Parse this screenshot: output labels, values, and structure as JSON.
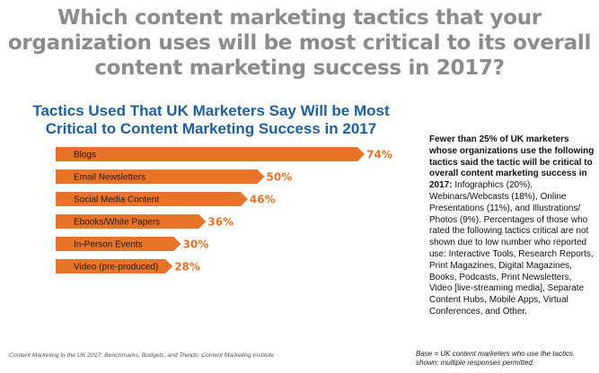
{
  "question": "Which content marketing tactics that your organization uses will be most critical to its overall content marketing success in 2017?",
  "note": {
    "bold": "Fewer than 25% of UK marketers whose organizations use the following tactics said the tactic will be critical to overall content marketing success in 2017:",
    "text": " Infographics (20%), Webinars/Webcasts (18%), Online Presentations (11%), and Illustrations/ Photos (9%). Percentages of those who rated the following tactics critical are not shown due to low number who reported use: Interactive Tools, Research Reports, Print Magazines, Digital Magazines, Books, Podcasts, Print Newsletters, Video [live-streaming media], Separate Content Hubs, Mobile Apps, Virtual Conferences, and Other."
  },
  "source": "Content Marketing in the UK 2017: Benchmarks, Budgets, and Trends: Content Marketing Institute",
  "base_note": "Base = UK content marketers who use the tactics shown; multiple responses permitted.",
  "colors": {
    "bar": "#e8742a",
    "title": "#1f5f9a",
    "question": "#8b8b8b"
  },
  "chart_data": {
    "type": "bar",
    "orientation": "horizontal",
    "title": "Tactics Used That UK Marketers Say Will be Most Critical to Content Marketing Success in 2017",
    "categories": [
      "Blogs",
      "Email Newsletters",
      "Social Media Content",
      "Ebooks/White Papers",
      "In-Person Events",
      "Video (pre-produced)"
    ],
    "values": [
      74,
      50,
      46,
      36,
      30,
      28
    ],
    "value_labels": [
      "74%",
      "50%",
      "46%",
      "36%",
      "30%",
      "28%"
    ],
    "unit": "%",
    "grid": false
  }
}
